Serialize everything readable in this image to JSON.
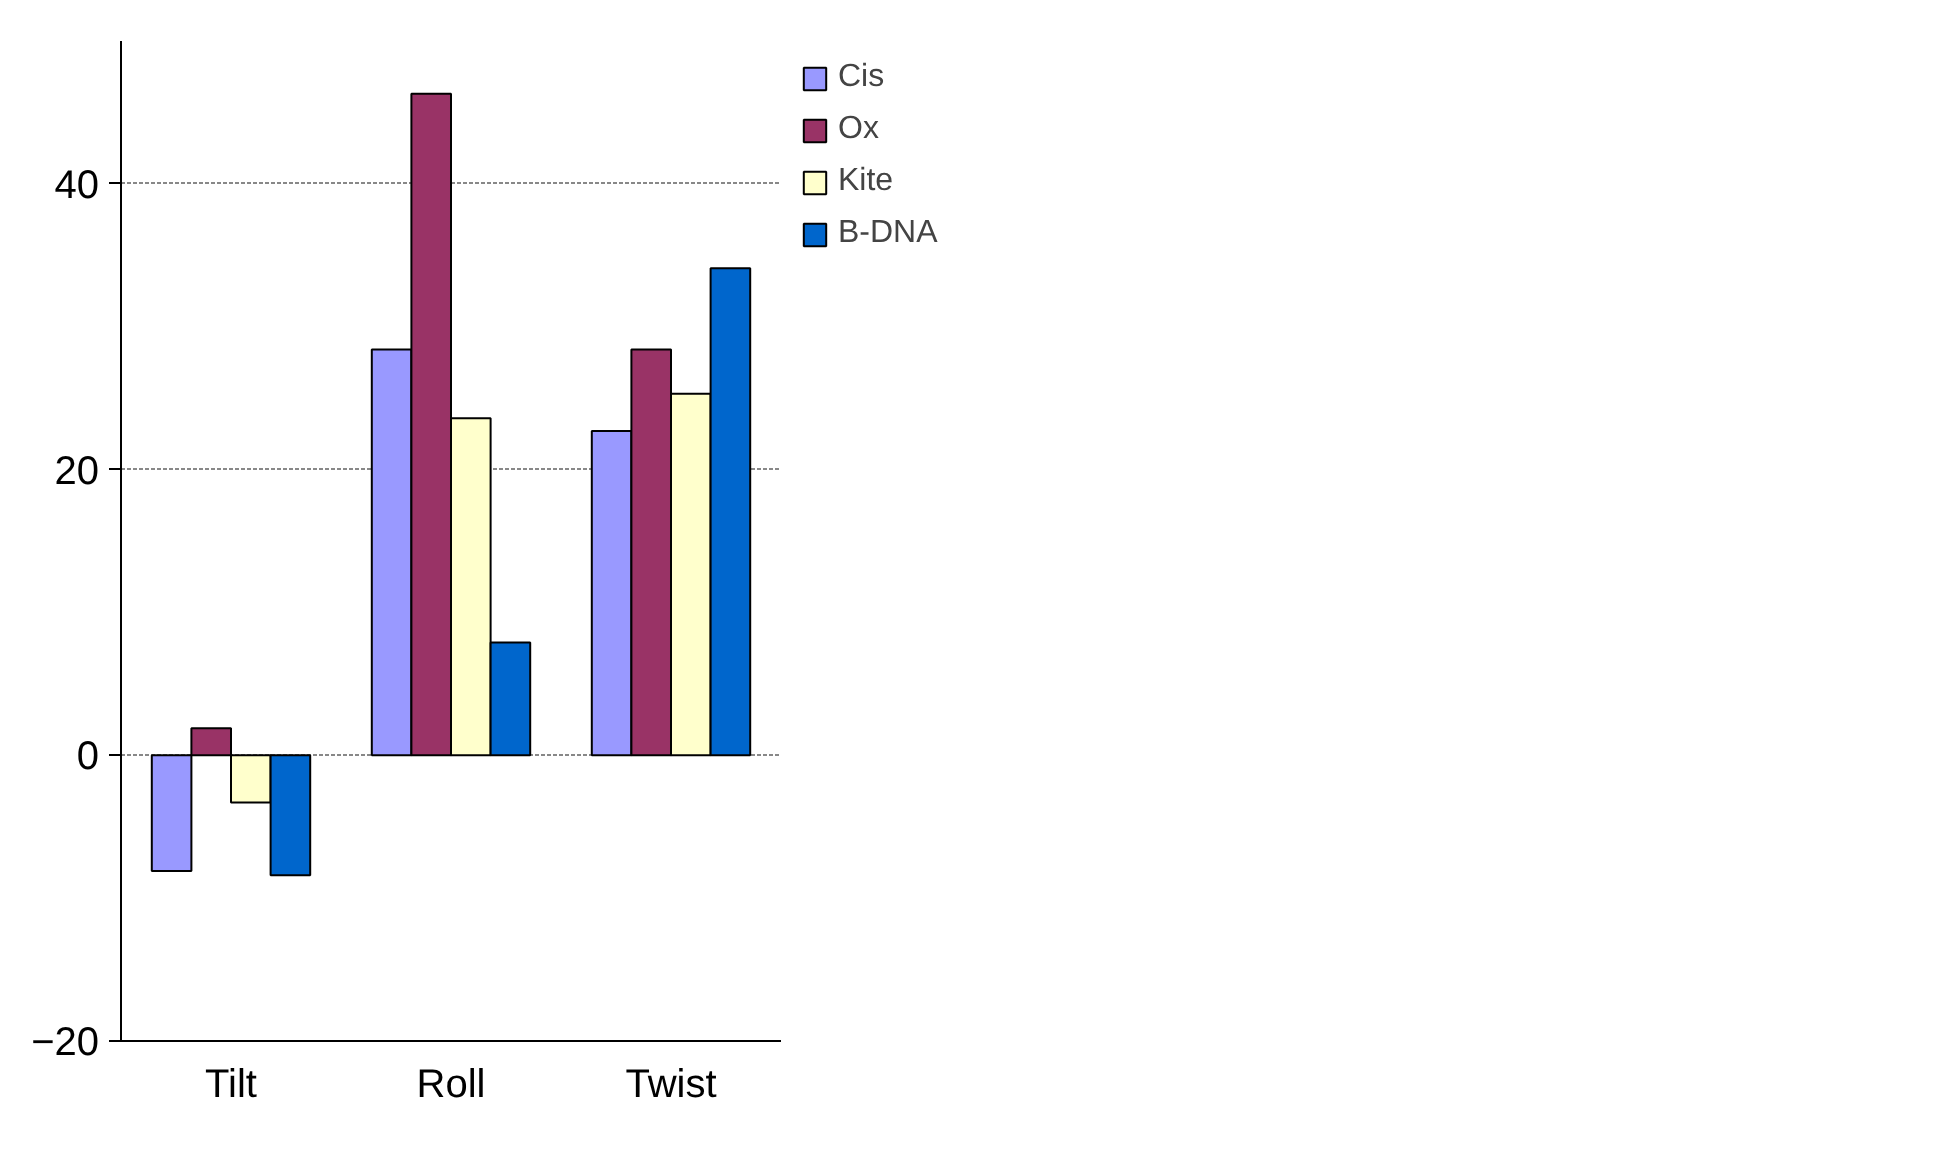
{
  "chart_data": {
    "type": "bar",
    "categories": [
      "Tilt",
      "Roll",
      "Twist"
    ],
    "series": [
      {
        "name": "Cis",
        "color": "#9999ff",
        "values": [
          -8.1,
          28.4,
          22.7
        ]
      },
      {
        "name": "Ox",
        "color": "#993366",
        "values": [
          1.9,
          46.3,
          28.4
        ]
      },
      {
        "name": "Kite",
        "color": "#ffffcc",
        "values": [
          -3.3,
          23.6,
          25.3
        ]
      },
      {
        "name": "B-DNA",
        "color": "#0066cc",
        "values": [
          -8.4,
          7.9,
          34.1
        ]
      }
    ],
    "ylim": [
      -20,
      50
    ],
    "yticks": [
      -20,
      0,
      20,
      40
    ],
    "grid": "y",
    "legend": "top right"
  }
}
